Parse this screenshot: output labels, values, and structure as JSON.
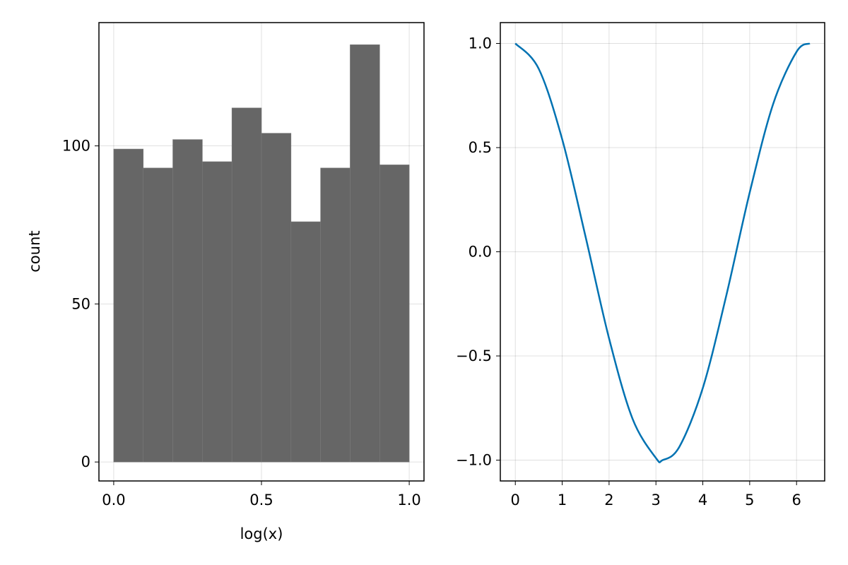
{
  "chart_data": [
    {
      "type": "bar",
      "subtype": "histogram",
      "title": "",
      "xlabel": "log(x)",
      "ylabel": "count",
      "bin_edges": [
        0.0,
        0.1,
        0.2,
        0.3,
        0.4,
        0.5,
        0.6,
        0.7,
        0.8,
        0.9,
        1.0
      ],
      "values": [
        99,
        93,
        102,
        95,
        112,
        104,
        76,
        93,
        132,
        94
      ],
      "xlim": [
        -0.05,
        1.05
      ],
      "ylim": [
        -6,
        139
      ],
      "xticks": [
        0.0,
        0.5,
        1.0
      ],
      "xtick_labels": [
        "0.0",
        "0.5",
        "1.0"
      ],
      "yticks": [
        0,
        50,
        100
      ],
      "ytick_labels": [
        "0",
        "50",
        "100"
      ],
      "grid": true,
      "bar_color": "#666666"
    },
    {
      "type": "line",
      "title": "",
      "xlabel": "",
      "ylabel": "",
      "function": "cos(x)",
      "x": [
        0.0,
        0.5,
        1.0,
        1.5,
        2.0,
        2.5,
        3.0,
        3.14159,
        3.5,
        4.0,
        4.5,
        5.0,
        5.5,
        6.0,
        6.28319
      ],
      "y": [
        1.0,
        0.878,
        0.54,
        0.071,
        -0.416,
        -0.801,
        -0.99,
        -1.0,
        -0.936,
        -0.654,
        -0.211,
        0.284,
        0.709,
        0.96,
        1.0
      ],
      "xlim": [
        -0.32,
        6.6
      ],
      "ylim": [
        -1.1,
        1.1
      ],
      "xticks": [
        0,
        1,
        2,
        3,
        4,
        5,
        6
      ],
      "xtick_labels": [
        "0",
        "1",
        "2",
        "3",
        "4",
        "5",
        "6"
      ],
      "yticks": [
        -1.0,
        -0.5,
        0.0,
        0.5,
        1.0
      ],
      "ytick_labels": [
        "−1.0",
        "−0.5",
        "0.0",
        "0.5",
        "1.0"
      ],
      "grid": true,
      "line_color": "#0072b2"
    }
  ]
}
